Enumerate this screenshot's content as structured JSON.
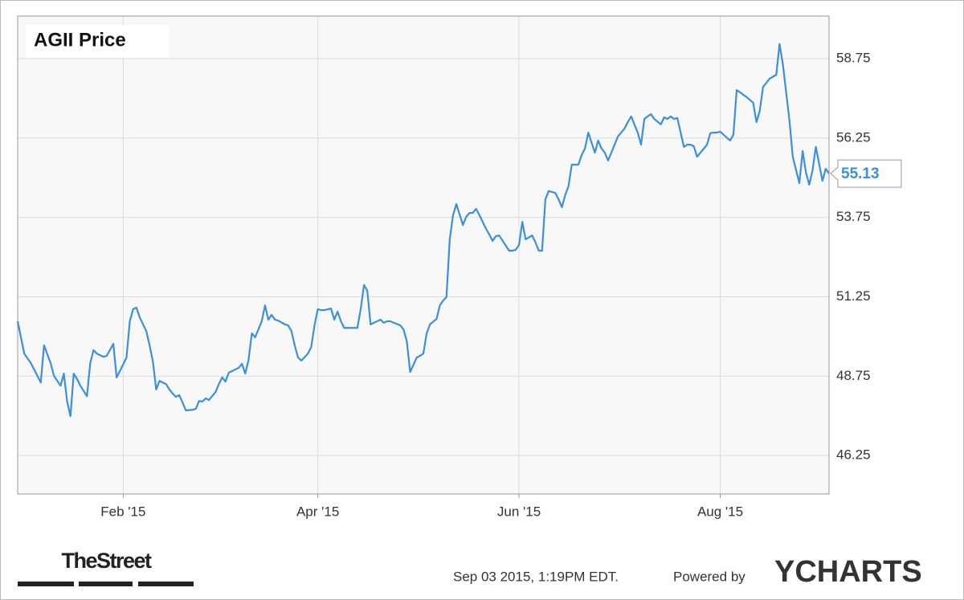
{
  "chart_data": {
    "type": "line",
    "title": "AGII Price",
    "x": [
      -1,
      1,
      3,
      4,
      6,
      7,
      9,
      10,
      12,
      13,
      14,
      15,
      16,
      17,
      18,
      20,
      21,
      22,
      23,
      25,
      26,
      28,
      29,
      30,
      32,
      33,
      34,
      35,
      36,
      38,
      39,
      40,
      41,
      42,
      44,
      45,
      46,
      47,
      48,
      49,
      50,
      52,
      53,
      54,
      55,
      56,
      57,
      59,
      60,
      61,
      62,
      63,
      64,
      66,
      67,
      68,
      69,
      70,
      71,
      73,
      74,
      75,
      76,
      77,
      78,
      80,
      81,
      82,
      83,
      84,
      85,
      87,
      88,
      89,
      90,
      91,
      92,
      94,
      95,
      96,
      97,
      98,
      99,
      101,
      102,
      103,
      104,
      105,
      106,
      108,
      109,
      110,
      111,
      112,
      113,
      115,
      116,
      117,
      118,
      120,
      121,
      122,
      123,
      124,
      126,
      127,
      128,
      129,
      130,
      131,
      132,
      134,
      135,
      136,
      137,
      138,
      139,
      141,
      142,
      143,
      144,
      145,
      148,
      149,
      150,
      151,
      152,
      153,
      155,
      156,
      157,
      158,
      159,
      160,
      162,
      163,
      164,
      165,
      166,
      167,
      169,
      170,
      171,
      172,
      174,
      175,
      176,
      177,
      178,
      179,
      181,
      182,
      183,
      184,
      185,
      187,
      188,
      189,
      190,
      191,
      192,
      194,
      195,
      196,
      197,
      198,
      199,
      201,
      202,
      203,
      204,
      205,
      208,
      209,
      210,
      211,
      212,
      215,
      216,
      217,
      218,
      219,
      220,
      222,
      223,
      224,
      225,
      226,
      227,
      229,
      230,
      231,
      232,
      233,
      234,
      236,
      237,
      238,
      239,
      240,
      241,
      243,
      244,
      245
    ],
    "series": [
      {
        "name": "AGII Price",
        "color": "#3b8fdc",
        "values": [
          50.48,
          49.46,
          49.16,
          48.96,
          48.55,
          49.72,
          49.16,
          48.76,
          48.45,
          48.83,
          47.95,
          47.49,
          48.83,
          48.66,
          48.45,
          48.12,
          49.16,
          49.57,
          49.46,
          49.36,
          49.39,
          49.77,
          48.71,
          48.91,
          49.34,
          50.48,
          50.86,
          50.91,
          50.6,
          50.17,
          49.72,
          49.21,
          48.33,
          48.6,
          48.5,
          48.33,
          48.2,
          48.1,
          48.15,
          47.92,
          47.67,
          47.69,
          47.72,
          47.97,
          47.95,
          48.05,
          48.0,
          48.25,
          48.5,
          48.71,
          48.58,
          48.86,
          48.91,
          49.01,
          49.14,
          48.83,
          49.26,
          50.1,
          49.97,
          50.48,
          50.98,
          50.53,
          50.68,
          50.53,
          50.5,
          50.38,
          50.35,
          50.17,
          49.72,
          49.34,
          49.24,
          49.46,
          49.67,
          50.35,
          50.86,
          50.83,
          50.83,
          50.88,
          50.53,
          50.78,
          50.48,
          50.27,
          50.27,
          50.27,
          50.27,
          50.86,
          51.62,
          51.44,
          50.38,
          50.48,
          50.53,
          50.43,
          50.48,
          50.48,
          50.43,
          50.35,
          50.22,
          49.84,
          48.88,
          49.34,
          49.39,
          49.46,
          50.1,
          50.38,
          50.55,
          50.98,
          51.13,
          51.24,
          53.06,
          53.82,
          54.17,
          53.51,
          53.77,
          53.89,
          53.89,
          54.02,
          53.82,
          53.39,
          53.21,
          53.01,
          53.16,
          53.18,
          52.7,
          52.7,
          52.73,
          52.88,
          53.61,
          53.06,
          53.18,
          52.96,
          52.7,
          52.7,
          54.32,
          54.58,
          54.52,
          54.32,
          54.07,
          54.45,
          54.73,
          55.41,
          55.41,
          55.71,
          55.92,
          56.42,
          55.79,
          56.17,
          55.92,
          55.79,
          55.54,
          55.79,
          56.3,
          56.42,
          56.55,
          56.75,
          56.93,
          56.42,
          56.04,
          56.85,
          56.93,
          57.0,
          56.85,
          56.68,
          56.9,
          56.85,
          56.93,
          56.85,
          56.88,
          55.97,
          56.04,
          56.04,
          55.99,
          55.66,
          56.04,
          56.4,
          56.42,
          56.42,
          56.45,
          56.17,
          56.35,
          57.76,
          57.69,
          57.61,
          57.54,
          57.36,
          56.75,
          57.11,
          57.86,
          57.99,
          58.12,
          58.24,
          59.21,
          58.57,
          57.69,
          56.8,
          55.66,
          54.83,
          55.84,
          55.16,
          54.78,
          55.23,
          55.97,
          54.9,
          55.28,
          55.13
        ]
      }
    ],
    "xlim": [
      -1,
      245
    ],
    "xticks": [
      {
        "value": 31,
        "label": "Feb '15"
      },
      {
        "value": 90,
        "label": "Apr '15"
      },
      {
        "value": 151,
        "label": "Jun '15"
      },
      {
        "value": 212,
        "label": "Aug '15"
      }
    ],
    "ylim": [
      45.04,
      60.09
    ],
    "yticks": [
      46.25,
      48.75,
      51.25,
      53.75,
      56.25,
      58.75
    ],
    "grid": true,
    "timestamp": "Sep 03 2015, 1:19PM EDT.",
    "credit": "Powered by",
    "brand": "YCHARTS",
    "publisher": "TheStreet"
  }
}
